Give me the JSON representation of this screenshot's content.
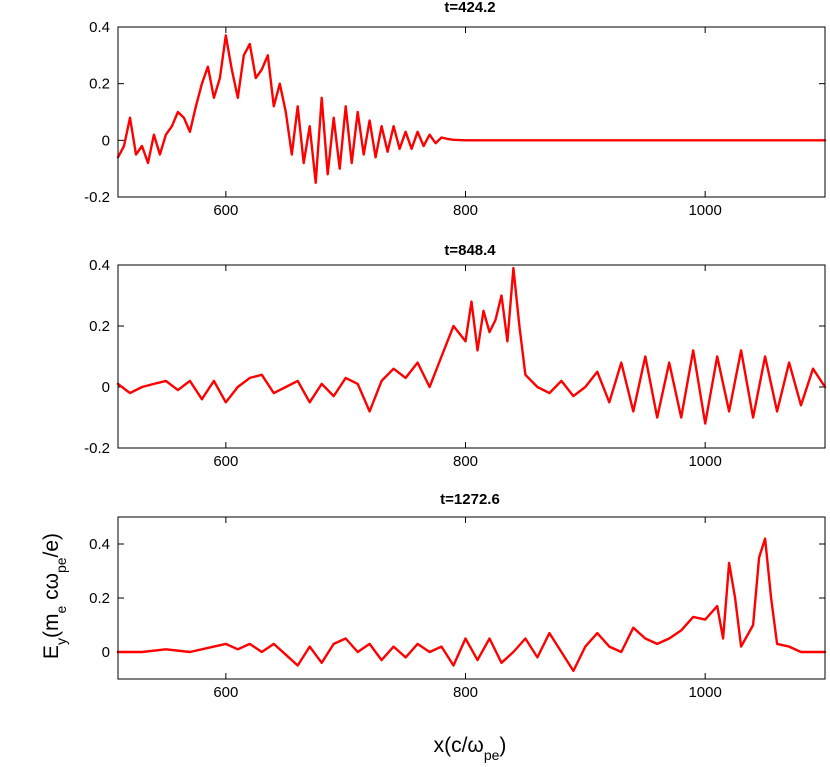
{
  "chart_data": [
    {
      "type": "line",
      "title": "t=424.2",
      "xlabel": "",
      "ylabel": "",
      "xlim": [
        510,
        1100
      ],
      "ylim": [
        -0.2,
        0.4
      ],
      "xticks": [
        600,
        800,
        1000
      ],
      "xtick_labels": [
        "600",
        "800",
        "1000"
      ],
      "yticks": [
        -0.2,
        0,
        0.2,
        0.4
      ],
      "ytick_labels": [
        "-0.2",
        "0",
        "0.2",
        "0.4"
      ],
      "grid": false,
      "color": "#ff0000",
      "series": [
        {
          "x": [
            510,
            515,
            520,
            525,
            530,
            535,
            540,
            545,
            550,
            555,
            560,
            565,
            570,
            575,
            580,
            585,
            590,
            595,
            600,
            605,
            610,
            615,
            620,
            625,
            630,
            635,
            640,
            645,
            650,
            655,
            660,
            665,
            670,
            675,
            680,
            685,
            690,
            695,
            700,
            705,
            710,
            715,
            720,
            725,
            730,
            735,
            740,
            745,
            750,
            755,
            760,
            765,
            770,
            775,
            780,
            785,
            790,
            800,
            820,
            850,
            900,
            950,
            1000,
            1050,
            1100
          ],
          "y": [
            -0.06,
            -0.02,
            0.08,
            -0.05,
            -0.02,
            -0.08,
            0.02,
            -0.05,
            0.02,
            0.05,
            0.1,
            0.08,
            0.03,
            0.12,
            0.2,
            0.26,
            0.15,
            0.22,
            0.37,
            0.25,
            0.15,
            0.3,
            0.34,
            0.22,
            0.25,
            0.3,
            0.12,
            0.2,
            0.1,
            -0.05,
            0.12,
            -0.08,
            0.05,
            -0.15,
            0.15,
            -0.12,
            0.08,
            -0.1,
            0.12,
            -0.08,
            0.1,
            -0.05,
            0.07,
            -0.06,
            0.05,
            -0.04,
            0.05,
            -0.03,
            0.03,
            -0.03,
            0.03,
            -0.02,
            0.02,
            -0.01,
            0.01,
            0.005,
            0.002,
            0,
            0,
            0,
            0,
            0,
            0,
            0,
            0
          ]
        }
      ]
    },
    {
      "type": "line",
      "title": "t=848.4",
      "xlabel": "",
      "ylabel": "",
      "xlim": [
        510,
        1100
      ],
      "ylim": [
        -0.2,
        0.4
      ],
      "xticks": [
        600,
        800,
        1000
      ],
      "xtick_labels": [
        "600",
        "800",
        "1000"
      ],
      "yticks": [
        -0.2,
        0,
        0.2,
        0.4
      ],
      "ytick_labels": [
        "-0.2",
        "0",
        "0.2",
        "0.4"
      ],
      "grid": false,
      "color": "#ff0000",
      "series": [
        {
          "x": [
            510,
            520,
            530,
            540,
            550,
            560,
            570,
            580,
            590,
            600,
            610,
            620,
            630,
            640,
            650,
            660,
            670,
            680,
            690,
            700,
            710,
            720,
            730,
            740,
            750,
            760,
            770,
            780,
            790,
            800,
            805,
            810,
            815,
            820,
            825,
            830,
            835,
            840,
            845,
            850,
            860,
            870,
            880,
            890,
            900,
            910,
            920,
            930,
            940,
            950,
            960,
            970,
            980,
            990,
            1000,
            1010,
            1020,
            1030,
            1040,
            1050,
            1060,
            1070,
            1080,
            1090,
            1100
          ],
          "y": [
            0.01,
            -0.02,
            0.0,
            0.01,
            0.02,
            -0.01,
            0.02,
            -0.04,
            0.02,
            -0.05,
            0.0,
            0.03,
            0.04,
            -0.02,
            0.0,
            0.02,
            -0.05,
            0.01,
            -0.03,
            0.03,
            0.01,
            -0.08,
            0.02,
            0.06,
            0.03,
            0.08,
            0.0,
            0.1,
            0.2,
            0.15,
            0.28,
            0.12,
            0.25,
            0.18,
            0.22,
            0.3,
            0.15,
            0.39,
            0.2,
            0.04,
            0.0,
            -0.02,
            0.02,
            -0.03,
            0.0,
            0.05,
            -0.05,
            0.08,
            -0.08,
            0.1,
            -0.1,
            0.08,
            -0.1,
            0.12,
            -0.12,
            0.1,
            -0.08,
            0.12,
            -0.1,
            0.1,
            -0.08,
            0.08,
            -0.06,
            0.06,
            0.0
          ]
        }
      ]
    },
    {
      "type": "line",
      "title": "t=1272.6",
      "xlabel": "x(c/ω_pe)",
      "ylabel": "E_y(m_e cω_pe/e)",
      "xlim": [
        510,
        1100
      ],
      "ylim": [
        -0.1,
        0.5
      ],
      "xticks": [
        600,
        800,
        1000
      ],
      "xtick_labels": [
        "600",
        "800",
        "1000"
      ],
      "yticks": [
        0,
        0.2,
        0.4
      ],
      "ytick_labels": [
        "0",
        "0.2",
        "0.4"
      ],
      "grid": false,
      "color": "#ff0000",
      "series": [
        {
          "x": [
            510,
            530,
            550,
            570,
            590,
            600,
            610,
            620,
            630,
            640,
            650,
            660,
            670,
            680,
            690,
            700,
            710,
            720,
            730,
            740,
            750,
            760,
            770,
            780,
            790,
            800,
            810,
            820,
            830,
            840,
            850,
            860,
            870,
            880,
            890,
            900,
            910,
            920,
            930,
            940,
            950,
            960,
            970,
            980,
            990,
            1000,
            1010,
            1015,
            1020,
            1025,
            1030,
            1040,
            1045,
            1050,
            1055,
            1060,
            1070,
            1080,
            1090,
            1100
          ],
          "y": [
            0.0,
            0.0,
            0.01,
            0.0,
            0.02,
            0.03,
            0.01,
            0.03,
            0.0,
            0.03,
            -0.01,
            -0.05,
            0.02,
            -0.04,
            0.03,
            0.05,
            0.0,
            0.03,
            -0.03,
            0.02,
            -0.02,
            0.03,
            0.0,
            0.02,
            -0.05,
            0.05,
            -0.03,
            0.05,
            -0.04,
            0.0,
            0.05,
            -0.02,
            0.07,
            0.0,
            -0.07,
            0.02,
            0.07,
            0.02,
            0.0,
            0.09,
            0.05,
            0.03,
            0.05,
            0.08,
            0.13,
            0.12,
            0.17,
            0.05,
            0.33,
            0.2,
            0.02,
            0.1,
            0.35,
            0.42,
            0.2,
            0.03,
            0.02,
            0.0,
            0.0,
            0.0
          ]
        }
      ]
    }
  ]
}
